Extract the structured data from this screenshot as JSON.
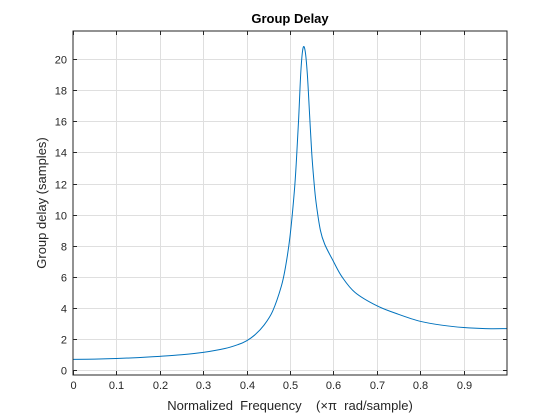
{
  "chart_data": {
    "type": "line",
    "title": "Group Delay",
    "xlabel": "Normalized  Frequency    (×π  rad/sample)",
    "ylabel": "Group delay (samples)",
    "xlim": [
      0,
      1
    ],
    "ylim": [
      -0.3,
      21.8
    ],
    "xticks": [
      0,
      0.1,
      0.2,
      0.3,
      0.4,
      0.5,
      0.6,
      0.7,
      0.8,
      0.9
    ],
    "xtick_labels": [
      "0",
      "0.1",
      "0.2",
      "0.3",
      "0.4",
      "0.5",
      "0.6",
      "0.7",
      "0.8",
      "0.9"
    ],
    "yticks": [
      0,
      2,
      4,
      6,
      8,
      10,
      12,
      14,
      16,
      18,
      20
    ],
    "ytick_labels": [
      "0",
      "2",
      "4",
      "6",
      "8",
      "10",
      "12",
      "14",
      "16",
      "18",
      "20"
    ],
    "grid": true,
    "series_color": "#0072bd",
    "series": [
      {
        "x": [
          0,
          0.05,
          0.1,
          0.15,
          0.2,
          0.25,
          0.3,
          0.35,
          0.38,
          0.4,
          0.42,
          0.44,
          0.46,
          0.48,
          0.49,
          0.5,
          0.51,
          0.515,
          0.52,
          0.525,
          0.53,
          0.535,
          0.54,
          0.545,
          0.55,
          0.555,
          0.56,
          0.57,
          0.58,
          0.6,
          0.62,
          0.65,
          0.7,
          0.75,
          0.8,
          0.85,
          0.9,
          0.95,
          1.0
        ],
        "y": [
          0.7,
          0.72,
          0.76,
          0.82,
          0.9,
          1.0,
          1.15,
          1.4,
          1.65,
          1.9,
          2.3,
          2.9,
          3.8,
          5.4,
          6.7,
          8.6,
          11.5,
          13.6,
          16.2,
          19.2,
          20.7,
          20.5,
          19.0,
          16.5,
          14.0,
          12.2,
          10.8,
          9.0,
          8.1,
          7.0,
          6.0,
          5.0,
          4.15,
          3.6,
          3.15,
          2.9,
          2.75,
          2.68,
          2.68
        ]
      }
    ]
  }
}
